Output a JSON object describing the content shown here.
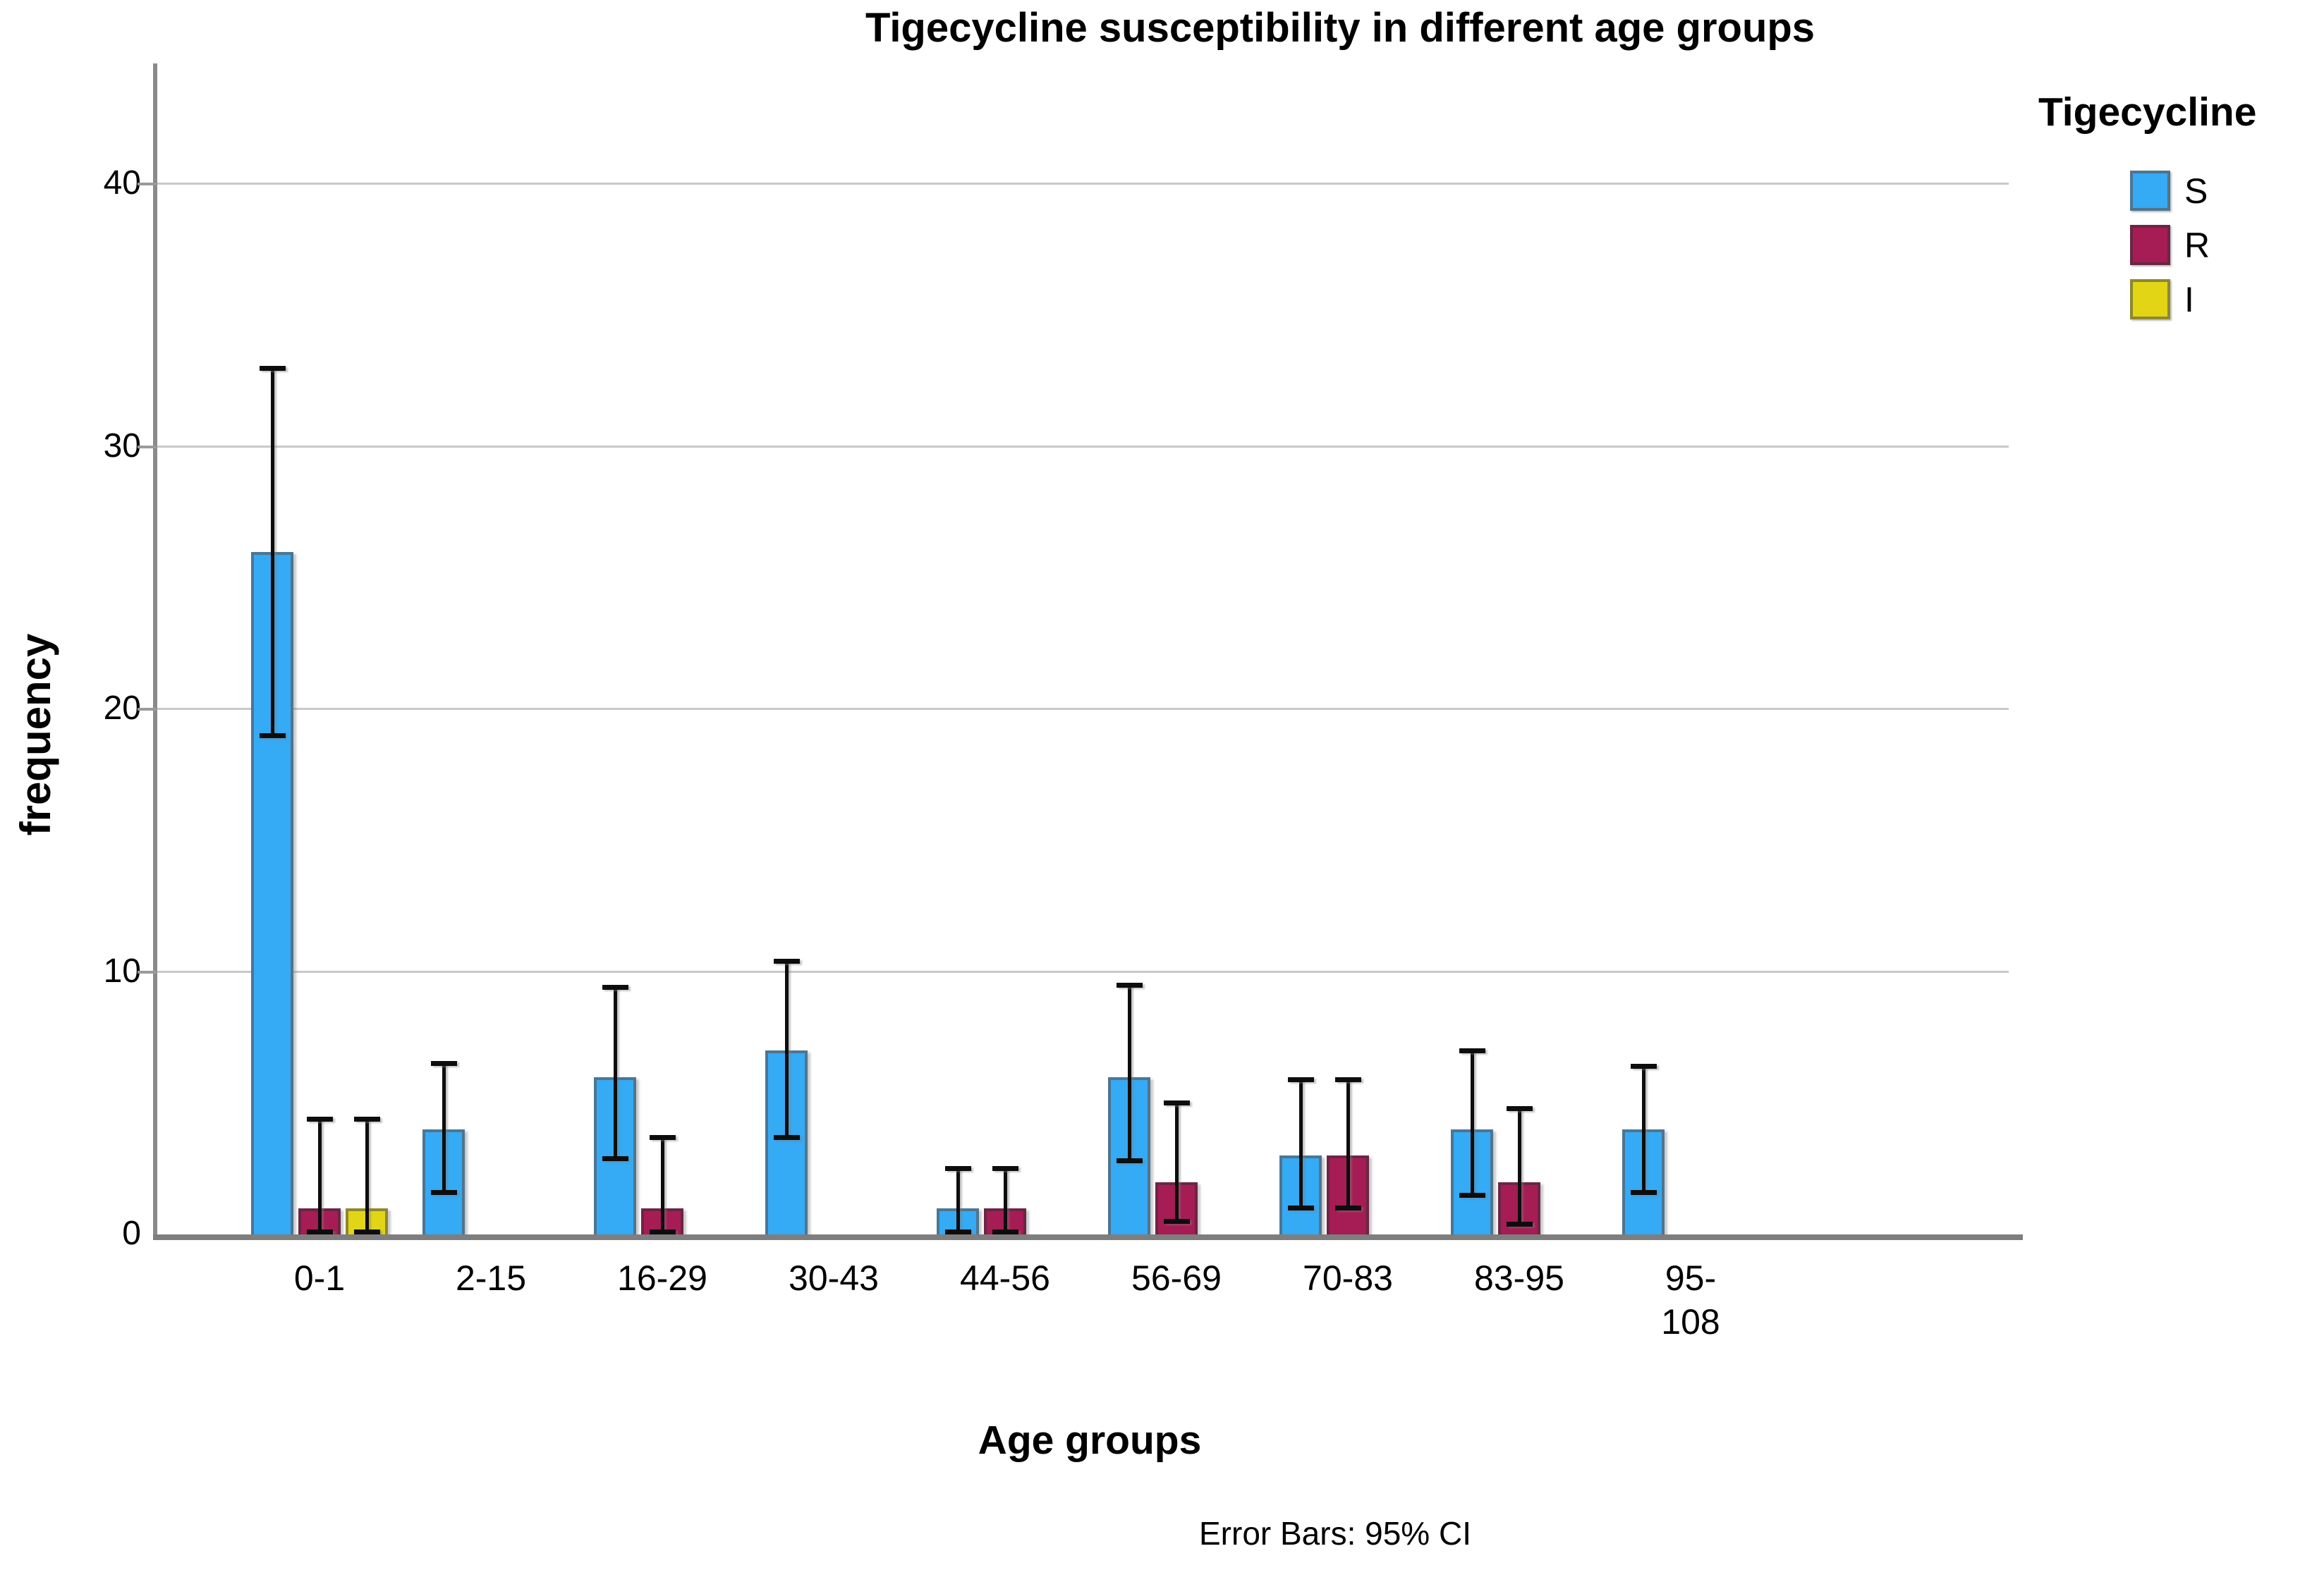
{
  "page": {
    "background": "#ffffff"
  },
  "legend": {
    "title": "Tigecycline"
  },
  "chart_data": {
    "type": "bar",
    "title": "Tigecycline susceptibility in different age groups",
    "xlabel": "Age groups",
    "ylabel": "frequency",
    "error_note": "Error Bars: 95% CI",
    "ylim": [
      0,
      44.6
    ],
    "yticks": [
      0,
      10,
      20,
      30,
      40
    ],
    "grid": "horizontal",
    "legend_position": "top-right",
    "categories": [
      "0-1",
      "2-15",
      "16-29",
      "30-43",
      "44-56",
      "56-69",
      "70-83",
      "83-95",
      "95-\n108"
    ],
    "series": [
      {
        "name": "S",
        "color": "#35AAF5",
        "border_color": "#4E7590",
        "values": [
          26,
          4,
          6,
          7,
          1,
          6,
          3,
          4,
          4
        ],
        "ci_low": [
          19,
          1.6,
          2.9,
          3.7,
          0.1,
          2.8,
          1.0,
          1.5,
          1.6
        ],
        "ci_high": [
          33,
          6.5,
          9.4,
          10.4,
          2.5,
          9.5,
          5.9,
          7.0,
          6.4
        ]
      },
      {
        "name": "R",
        "color": "#A61C55",
        "border_color": "#6B2644",
        "values": [
          1,
          null,
          1,
          null,
          1,
          2,
          3,
          2,
          null
        ],
        "ci_low": [
          0.1,
          null,
          0.1,
          null,
          0.1,
          0.5,
          1.0,
          0.4,
          null
        ],
        "ci_high": [
          4.4,
          null,
          3.7,
          null,
          2.5,
          5.0,
          5.9,
          4.8,
          null
        ]
      },
      {
        "name": "I",
        "color": "#E2D515",
        "border_color": "#8E872F",
        "values": [
          1,
          null,
          null,
          null,
          null,
          null,
          null,
          null,
          null
        ],
        "ci_low": [
          0.1,
          null,
          null,
          null,
          null,
          null,
          null,
          null,
          null
        ],
        "ci_high": [
          4.4,
          null,
          null,
          null,
          null,
          null,
          null,
          null,
          null
        ]
      }
    ]
  }
}
